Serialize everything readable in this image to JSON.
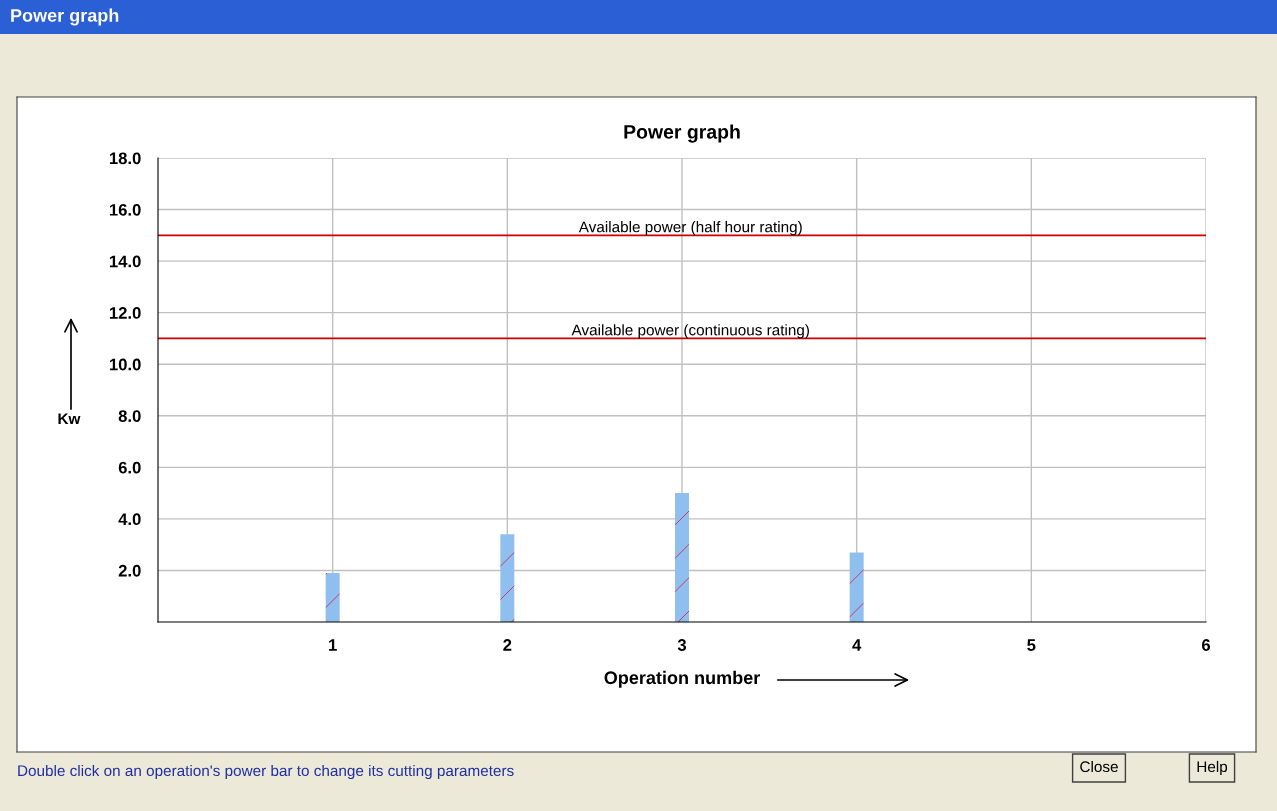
{
  "chart_data": {
    "type": "bar",
    "title": "Power graph",
    "xlabel": "Operation number",
    "ylabel": "Kw",
    "x": [
      1,
      2,
      3,
      4,
      5,
      6
    ],
    "values": [
      1.9,
      3.4,
      5.0,
      2.7,
      0,
      0
    ],
    "color": "#8fbfef",
    "xlim": [
      0,
      6
    ],
    "xticks": [
      1,
      2,
      3,
      4,
      5,
      6
    ],
    "ylim": [
      0,
      18
    ],
    "yticks": [
      {
        "value": 2,
        "label": "2.0"
      },
      {
        "value": 4,
        "label": "4.0"
      },
      {
        "value": 6,
        "label": "6.0"
      },
      {
        "value": 8,
        "label": "8.0"
      },
      {
        "value": 10,
        "label": "10.0"
      },
      {
        "value": 12,
        "label": "12.0"
      },
      {
        "value": 14,
        "label": "14.0"
      },
      {
        "value": 16,
        "label": "16.0"
      },
      {
        "value": 18,
        "label": "18.0"
      }
    ],
    "grid": true,
    "ref_lines": [
      {
        "axis": "y",
        "value": 15,
        "label": "Available power (half hour rating)",
        "color": "#cc0000"
      },
      {
        "axis": "y",
        "value": 11,
        "label": "Available power (continuous rating)",
        "color": "#cc0000"
      }
    ],
    "annotations": [
      "Power graph",
      "Double click on an operation's power bar to change its cutting parameters",
      "Close",
      "Help"
    ]
  }
}
